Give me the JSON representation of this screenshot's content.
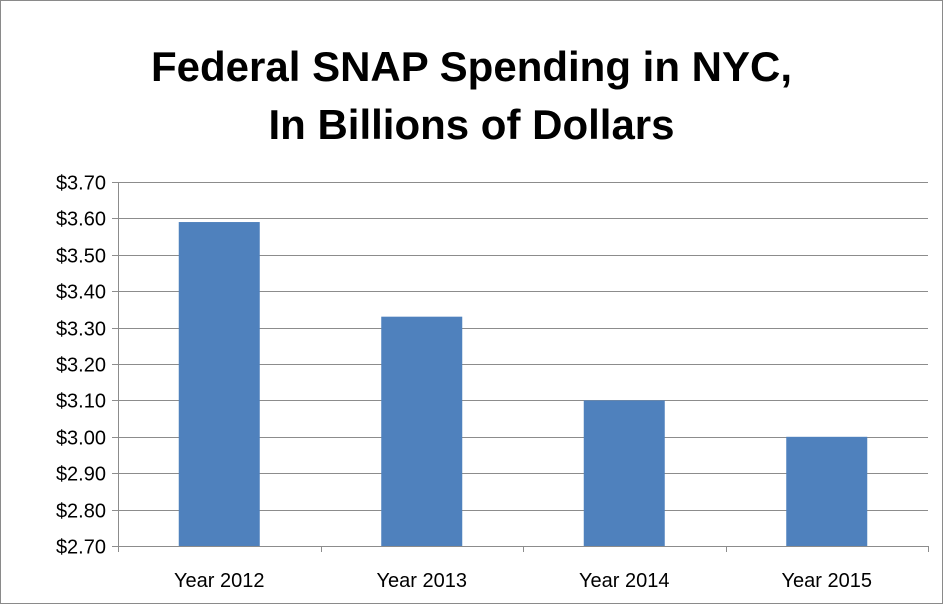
{
  "chart_data": {
    "type": "bar",
    "title_lines": [
      "Federal SNAP Spending in NYC,",
      "In Billions of Dollars"
    ],
    "categories": [
      "Year 2012",
      "Year 2013",
      "Year 2014",
      "Year 2015"
    ],
    "values": [
      3.59,
      3.33,
      3.1,
      3.0
    ],
    "ylim": [
      2.7,
      3.7
    ],
    "yticks": [
      "$2.70",
      "$2.80",
      "$2.90",
      "$3.00",
      "$3.10",
      "$3.20",
      "$3.30",
      "$3.40",
      "$3.50",
      "$3.60",
      "$3.70"
    ],
    "xlabel": "",
    "ylabel": "",
    "grid": true,
    "legend": "none",
    "bar_color": "#4f81bd",
    "gridline_color": "#8c8c8c"
  }
}
